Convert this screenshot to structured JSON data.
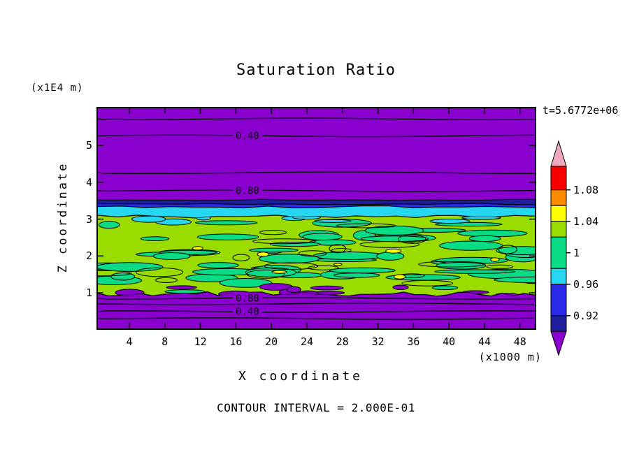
{
  "title": "Saturation Ratio",
  "annotations": {
    "timestamp": "t=5.6772e+06",
    "contour_note": "CONTOUR INTERVAL = 2.000E-01"
  },
  "axes": {
    "x": {
      "label": "X coordinate",
      "unit": "(x1000 m)",
      "ticks": [
        "4",
        "8",
        "12",
        "16",
        "20",
        "24",
        "28",
        "32",
        "36",
        "40",
        "44",
        "48"
      ]
    },
    "y": {
      "label": "Z coordinate",
      "unit": "(x1E4 m)",
      "ticks": [
        "1",
        "2",
        "3",
        "4",
        "5"
      ]
    }
  },
  "colorbar": {
    "tick_labels": [
      "1.08",
      "1.04",
      "1",
      "0.96",
      "0.92"
    ],
    "tick_values": [
      1.08,
      1.04,
      1,
      0.96,
      0.92
    ],
    "bands": [
      {
        "name": "above-max-arrow",
        "color": "#F0A8BC"
      },
      {
        "name": "red",
        "color": "#F80000",
        "range": [
          1.08,
          1.11
        ]
      },
      {
        "name": "orange",
        "color": "#FF8C00",
        "range": [
          1.06,
          1.08
        ]
      },
      {
        "name": "yellow",
        "color": "#FFFF00",
        "range": [
          1.04,
          1.06
        ]
      },
      {
        "name": "yellow-green",
        "color": "#9ADB00",
        "range": [
          1.02,
          1.04
        ]
      },
      {
        "name": "spring-green",
        "color": "#0ADC86",
        "range": [
          0.98,
          1.02
        ]
      },
      {
        "name": "cyan",
        "color": "#26D7F2",
        "range": [
          0.96,
          0.98
        ]
      },
      {
        "name": "blue",
        "color": "#2A2AE8",
        "range": [
          0.92,
          0.96
        ]
      },
      {
        "name": "navy",
        "color": "#1F1F9E",
        "range": [
          0.9,
          0.92
        ]
      },
      {
        "name": "below-min-arrow",
        "color": "#8A00CE"
      }
    ]
  },
  "chart_data": {
    "type": "heatmap",
    "title": "Saturation Ratio",
    "xlabel": "X coordinate (x1000 m)",
    "ylabel": "Z coordinate (x1E4 m)",
    "time": "t=5.6772e+06",
    "xlim": [
      0.5,
      49.7
    ],
    "ylim": [
      0,
      6
    ],
    "x_ticks": [
      4,
      8,
      12,
      16,
      20,
      24,
      28,
      32,
      36,
      40,
      44,
      48
    ],
    "y_ticks": [
      1,
      2,
      3,
      4,
      5
    ],
    "contour_interval": 0.2,
    "contour_label_x": 17.3,
    "colorbar_values": [
      1.08,
      1.04,
      1,
      0.96,
      0.92
    ],
    "line_contours": [
      {
        "value": 0.2,
        "z": 5.72
      },
      {
        "value": 0.4,
        "z": 5.26,
        "label": "0.40"
      },
      {
        "value": 0.6,
        "z": 4.26
      },
      {
        "value": 0.8,
        "z": 3.77,
        "label": "0.80"
      },
      {
        "value": 0.8,
        "z": 0.85,
        "label": "0.80"
      },
      {
        "value": 0.6,
        "z": 0.7
      },
      {
        "value": 0.4,
        "z": 0.49,
        "label": "0.40"
      },
      {
        "value": 0.2,
        "z": 0.3
      }
    ],
    "regions": [
      {
        "value": "< 0.92",
        "z_range": [
          3.52,
          6.01
        ],
        "color": "#8A00CE"
      },
      {
        "value": "0.92 - 0.94",
        "z_range": [
          3.41,
          3.52
        ],
        "color": "#1F1F9E"
      },
      {
        "value": "0.94 - 0.96",
        "z_range": [
          3.33,
          3.41
        ],
        "color": "#2A2AE8"
      },
      {
        "value": "0.96 - 0.98",
        "z_range": [
          3.07,
          3.33
        ],
        "color": "#26D7F2"
      },
      {
        "value": "0.98 - 1.04 mottled turbulent layer",
        "z_range": [
          0.97,
          3.07
        ],
        "color": "#9ADB00",
        "blob_color": "#0ADC86"
      },
      {
        "value": "< 0.92",
        "z_range": [
          0.03,
          0.97
        ],
        "color": "#8A00CE"
      }
    ]
  }
}
